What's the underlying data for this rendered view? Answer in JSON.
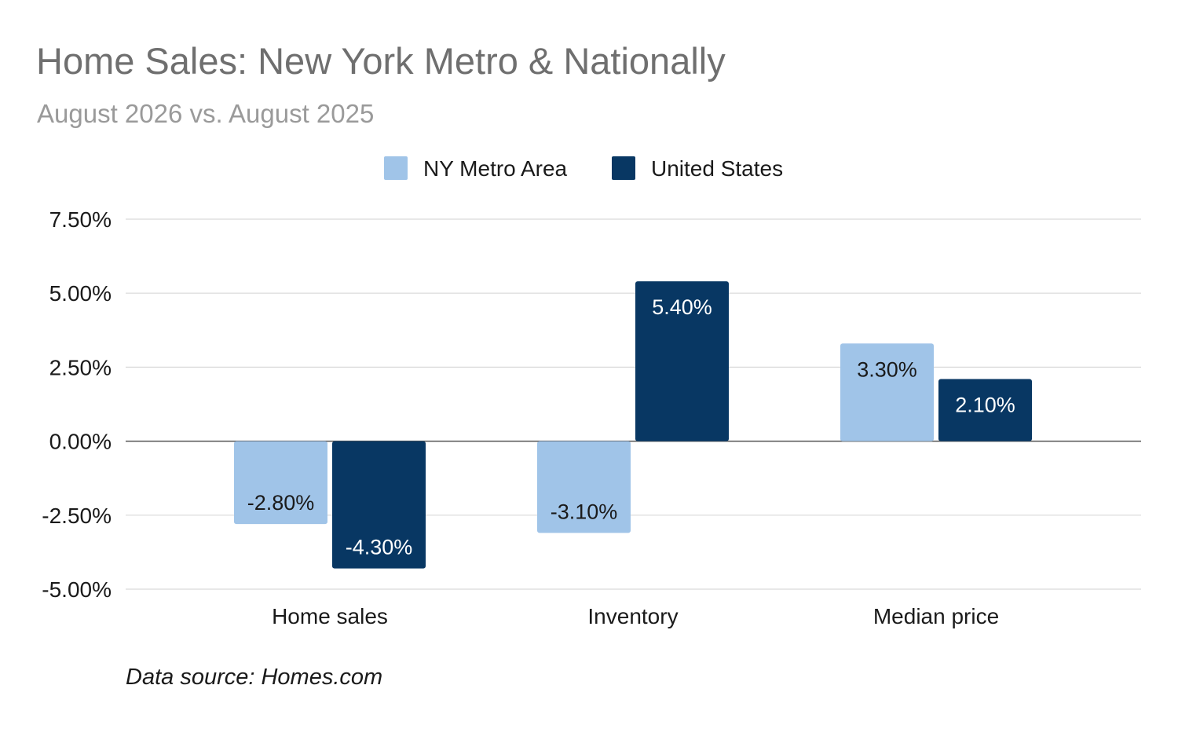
{
  "chart_data": {
    "type": "bar",
    "title": "Home Sales: New York Metro & Nationally",
    "subtitle": "August 2026 vs. August 2025",
    "source_note": "Data source: Homes.com",
    "categories": [
      "Home sales",
      "Inventory",
      "Median price"
    ],
    "series": [
      {
        "name": "NY Metro Area",
        "color": "#a0c4e8",
        "values": [
          -2.8,
          -3.1,
          3.3
        ],
        "labels": [
          "-2.80%",
          "-3.10%",
          "3.30%"
        ],
        "label_color": "#1a1a1a"
      },
      {
        "name": "United States",
        "color": "#083763",
        "values": [
          -4.3,
          5.4,
          2.1
        ],
        "labels": [
          "-4.30%",
          "5.40%",
          "2.10%"
        ],
        "label_color": "#ffffff"
      }
    ],
    "y_ticks": [
      7.5,
      5.0,
      2.5,
      0.0,
      -2.5,
      -5.0
    ],
    "y_tick_labels": [
      "7.50%",
      "5.00%",
      "2.50%",
      "0.00%",
      "-2.50%",
      "-5.00%"
    ],
    "ylim": [
      -5.0,
      7.5
    ],
    "xlabel": "",
    "ylabel": "",
    "grid": true,
    "legend_position": "top-center",
    "colors": {
      "gridline": "#d9d9d9",
      "zero_line": "#555555",
      "tick_text": "#1a1a1a"
    }
  }
}
